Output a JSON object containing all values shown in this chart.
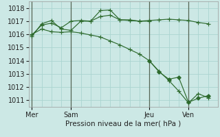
{
  "background_color": "#cce8e5",
  "grid_color": "#aad4d0",
  "line_color": "#2d6a2d",
  "vline_color": "#556655",
  "xlabel_text": "Pression niveau de la mer( hPa )",
  "xtick_labels": [
    "Mer",
    "Sam",
    "Jeu",
    "Ven"
  ],
  "xtick_positions": [
    0,
    24,
    72,
    96
  ],
  "xlim": [
    -2,
    114
  ],
  "ylim": [
    1010.5,
    1018.5
  ],
  "yticks": [
    1011,
    1012,
    1013,
    1014,
    1015,
    1016,
    1017,
    1018
  ],
  "vlines": [
    0,
    24,
    72,
    96
  ],
  "series": [
    {
      "x": [
        0,
        6,
        12,
        18,
        24,
        30,
        36,
        42,
        48,
        54,
        60,
        66,
        72,
        78,
        84,
        90,
        96,
        102,
        108
      ],
      "y": [
        1016.0,
        1016.4,
        1016.2,
        1016.15,
        1016.2,
        1016.1,
        1015.95,
        1015.8,
        1015.5,
        1015.2,
        1014.85,
        1014.5,
        1014.0,
        1013.2,
        1012.5,
        1011.7,
        1010.8,
        1011.5,
        1011.2
      ],
      "marker": "+"
    },
    {
      "x": [
        0,
        6,
        12,
        18,
        24,
        30,
        36,
        42,
        48,
        54,
        60,
        66,
        72,
        78,
        84,
        90,
        96,
        102,
        108
      ],
      "y": [
        1015.95,
        1016.7,
        1016.85,
        1016.5,
        1017.0,
        1017.05,
        1017.0,
        1017.35,
        1017.45,
        1017.1,
        1017.05,
        1017.0,
        1017.05,
        1017.1,
        1017.15,
        1017.1,
        1017.05,
        1016.9,
        1016.8
      ],
      "marker": "+"
    },
    {
      "x": [
        0,
        6,
        12,
        18,
        24,
        30,
        36,
        42,
        48,
        54,
        60,
        66,
        72
      ],
      "y": [
        1015.85,
        1016.8,
        1017.05,
        1016.4,
        1016.3,
        1017.0,
        1017.0,
        1017.8,
        1017.85,
        1017.1,
        1017.1,
        1017.0,
        1017.0
      ],
      "marker": "+"
    },
    {
      "x": [
        72,
        78,
        84,
        90,
        96,
        102,
        108
      ],
      "y": [
        1014.0,
        1013.15,
        1012.6,
        1012.75,
        1010.85,
        1011.15,
        1011.35
      ],
      "marker": "D"
    }
  ],
  "marker_size_plus": 4.5,
  "marker_size_diamond": 2.8,
  "linewidth": 0.85
}
